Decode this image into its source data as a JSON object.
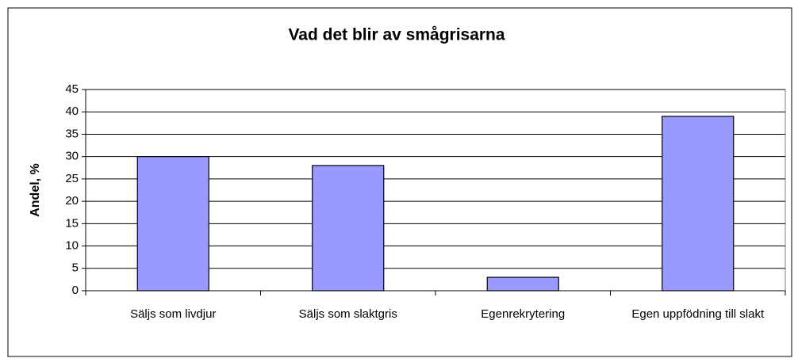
{
  "chart_data": {
    "type": "bar",
    "title": "Vad det blir av smågrisarna",
    "ylabel": "Andel, %",
    "categories": [
      "Säljs som livdjur",
      "Säljs som slaktgris",
      "Egenrekrytering",
      "Egen uppfödning till slakt"
    ],
    "values": [
      30,
      28,
      3,
      39
    ],
    "color": "#9999ff",
    "ylim": [
      0,
      45
    ],
    "yticks": [
      0,
      5,
      10,
      15,
      20,
      25,
      30,
      35,
      40,
      45
    ],
    "grid": true
  }
}
